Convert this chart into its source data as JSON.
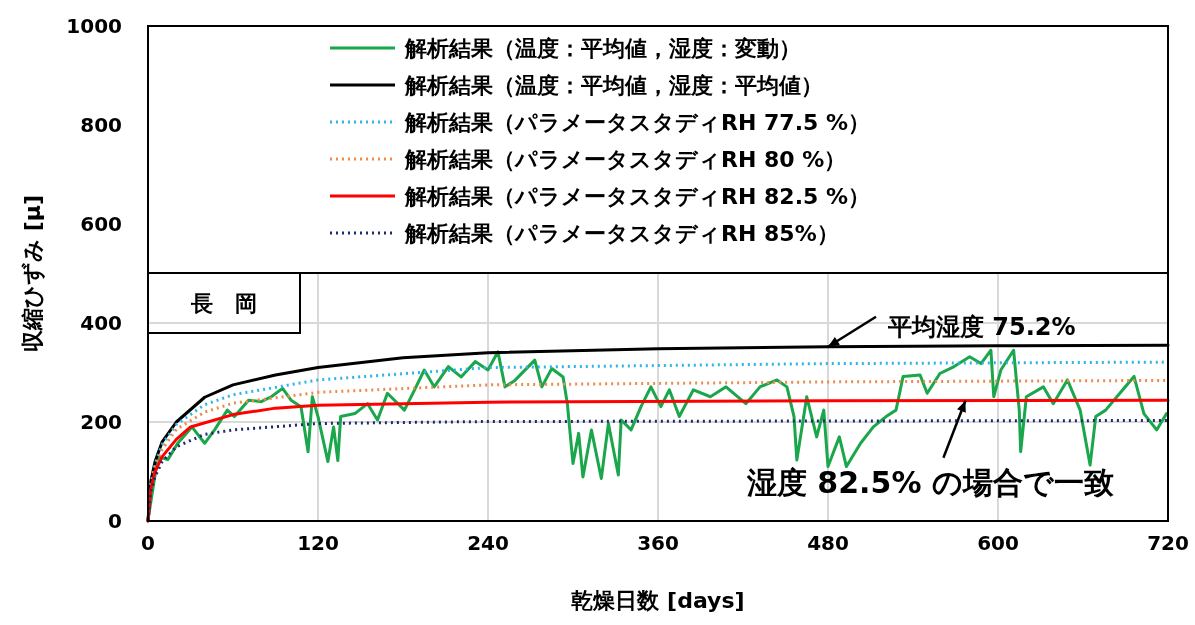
{
  "chart_data": {
    "type": "line",
    "xlabel": "乾燥日数 [days]",
    "ylabel": "収縮ひずみ [μ]",
    "xlim": [
      0,
      720
    ],
    "ylim": [
      0,
      1000
    ],
    "xticks": [
      0,
      120,
      240,
      360,
      480,
      600,
      720
    ],
    "yticks": [
      0,
      200,
      400,
      600,
      800,
      1000
    ],
    "grid": true,
    "legend": "top",
    "annotations": [
      "長　岡",
      {
        "text": "平均湿度 75.2%",
        "x": 480,
        "y": 352
      },
      {
        "text": "湿度 82.5% の場合で一致",
        "x": 577,
        "y": 243
      }
    ],
    "series": [
      {
        "name": "解析結果（温度：平均値，湿度：変動）",
        "color": "#1aa64a",
        "line_style": "solid",
        "x": [
          0,
          7,
          14,
          21,
          31,
          40,
          47,
          56,
          61,
          71,
          80,
          87,
          95,
          101,
          108,
          113,
          116,
          120,
          127,
          131,
          134,
          136,
          146,
          155,
          162,
          169,
          181,
          188,
          195,
          202,
          212,
          221,
          231,
          240,
          247,
          252,
          259,
          273,
          278,
          285,
          293,
          296,
          300,
          304,
          307,
          313,
          320,
          325,
          332,
          334,
          341,
          348,
          355,
          362,
          368,
          375,
          385,
          397,
          408,
          422,
          432,
          444,
          451,
          456,
          458,
          465,
          472,
          477,
          480,
          488,
          493,
          503,
          512,
          521,
          528,
          533,
          545,
          550,
          559,
          569,
          580,
          588,
          595,
          597,
          602,
          611,
          615,
          616,
          620,
          632,
          639,
          649,
          658,
          665,
          669,
          676,
          686,
          696,
          703,
          712,
          719
        ],
        "values": [
          2,
          130,
          124,
          157,
          190,
          157,
          184,
          224,
          211,
          244,
          241,
          251,
          268,
          244,
          231,
          140,
          251,
          211,
          120,
          190,
          122,
          211,
          217,
          237,
          204,
          258,
          224,
          264,
          305,
          271,
          312,
          291,
          322,
          305,
          342,
          271,
          284,
          325,
          271,
          308,
          291,
          237,
          116,
          177,
          89,
          184,
          86,
          197,
          93,
          204,
          184,
          231,
          271,
          231,
          265,
          211,
          265,
          251,
          271,
          237,
          271,
          285,
          271,
          211,
          123,
          251,
          170,
          224,
          110,
          170,
          110,
          157,
          190,
          211,
          224,
          292,
          295,
          258,
          298,
          312,
          332,
          318,
          345,
          251,
          305,
          345,
          224,
          140,
          251,
          271,
          237,
          285,
          224,
          113,
          211,
          224,
          258,
          292,
          217,
          184,
          217
        ]
      },
      {
        "name": "解析結果（温度：平均値，湿度：平均値）",
        "color": "#000000",
        "line_style": "solid",
        "x": [
          0,
          2,
          5,
          10,
          20,
          40,
          60,
          90,
          120,
          180,
          240,
          360,
          480,
          600,
          720
        ],
        "values": [
          0,
          80,
          120,
          160,
          200,
          250,
          275,
          295,
          310,
          330,
          340,
          348,
          352,
          354,
          355
        ]
      },
      {
        "name": "解析結果（パラメータスタディRH 77.5 %）",
        "color": "#2eb5e8",
        "line_style": "dotted",
        "x": [
          0,
          2,
          5,
          10,
          20,
          40,
          60,
          120,
          240,
          480,
          720
        ],
        "values": [
          0,
          75,
          115,
          155,
          195,
          235,
          255,
          285,
          310,
          318,
          321
        ]
      },
      {
        "name": "解析結果（パラメータスタディRH 80 %）",
        "color": "#f08a4b",
        "line_style": "dotted",
        "x": [
          0,
          2,
          5,
          10,
          20,
          40,
          60,
          120,
          240,
          480,
          720
        ],
        "values": [
          0,
          70,
          110,
          145,
          185,
          220,
          238,
          260,
          275,
          281,
          284
        ]
      },
      {
        "name": "解析結果（パラメータスタディRH 82.5 %）",
        "color": "#ff0000",
        "line_style": "solid",
        "x": [
          0,
          2,
          5,
          10,
          20,
          30,
          60,
          90,
          120,
          240,
          480,
          720
        ],
        "values": [
          0,
          65,
          100,
          130,
          165,
          190,
          215,
          228,
          234,
          240,
          243,
          244
        ]
      },
      {
        "name": "解析結果（パラメータスタディRH 85%）",
        "color": "#1f2a6b",
        "line_style": "dotted",
        "x": [
          0,
          2,
          5,
          10,
          20,
          40,
          60,
          120,
          240,
          720
        ],
        "values": [
          0,
          60,
          90,
          120,
          150,
          175,
          184,
          197,
          201,
          203
        ]
      }
    ]
  }
}
